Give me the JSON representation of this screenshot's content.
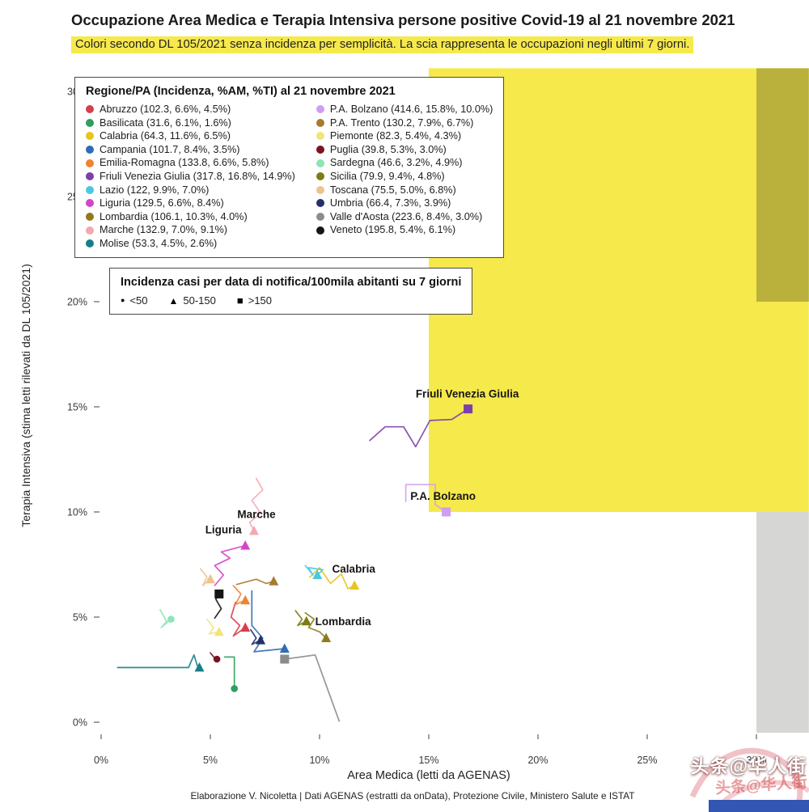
{
  "header": {
    "title": "Occupazione Area Medica e Terapia Intensiva persone positive Covid-19 al 21 novembre 2021",
    "subtitle": "Colori secondo DL 105/2021 senza incidenza per semplicità. La scia rappresenta le occupazioni negli ultimi 7 giorni."
  },
  "footer": {
    "credit": "Elaborazione V. Nicoletta | Dati AGENAS (estratti da onData), Protezione Civile, Ministero Salute e ISTAT"
  },
  "watermark": {
    "text": "头条@华人街",
    "bar_color": "#3356b4"
  },
  "chart_data": {
    "type": "scatter",
    "title": "Occupazione Area Medica e Terapia Intensiva persone positive Covid-19 al 21 novembre 2021",
    "xlabel": "Area Medica (letti da AGENAS)",
    "ylabel": "Terapia Intensiva (stima letti rilevati da DL 105/2021)",
    "xlim": [
      0,
      32.4
    ],
    "ylim": [
      0,
      31.1
    ],
    "xticks": [
      0,
      5,
      10,
      15,
      20,
      25,
      30
    ],
    "yticks": [
      0,
      5,
      10,
      15,
      20,
      25,
      30
    ],
    "grid": false,
    "legend_title": "Regione/PA (Incidenza, %AM, %TI) al 21 novembre 2021",
    "size_legend": {
      "title": "Incidenza casi per data di notifica/100mila abitanti su 7 giorni",
      "items": [
        {
          "symbol": "circle",
          "label": "<50"
        },
        {
          "symbol": "triangle",
          "label": "50-150"
        },
        {
          "symbol": "square",
          "label": ">150"
        }
      ]
    },
    "zones": [
      {
        "name": "yellow",
        "x0": 15,
        "x1": 32.4,
        "y0": 10,
        "y1": 31.1,
        "color": "#f6e94b"
      },
      {
        "name": "orange-overlap",
        "x0": 30,
        "x1": 32.4,
        "y0": 20,
        "y1": 31.1,
        "color": "#b9b13c"
      },
      {
        "name": "gray",
        "x0": 30,
        "x1": 32.4,
        "y0": -0.5,
        "y1": 10,
        "color": "#d6d6d4"
      }
    ],
    "series": [
      {
        "name": "Abruzzo",
        "legend_label": "Abruzzo (102.3, 6.6%, 4.5%)",
        "incidence": 102.3,
        "color": "#d63f4b",
        "shape": "triangle",
        "x": 6.6,
        "y": 4.5,
        "trail": [
          [
            6.15,
            5.7
          ],
          [
            5.95,
            5.0
          ],
          [
            6.35,
            4.6
          ],
          [
            6.05,
            4.1
          ]
        ]
      },
      {
        "name": "Basilicata",
        "legend_label": "Basilicata (31.6, 6.1%, 1.6%)",
        "incidence": 31.6,
        "color": "#2f9e5f",
        "shape": "circle",
        "x": 6.1,
        "y": 1.6,
        "trail": [
          [
            5.65,
            3.1
          ],
          [
            6.1,
            3.1
          ]
        ]
      },
      {
        "name": "Calabria",
        "legend_label": "Calabria (64.3, 11.6%, 6.5%)",
        "incidence": 64.3,
        "color": "#e7c41f",
        "shape": "triangle",
        "x": 11.6,
        "y": 6.5,
        "label": {
          "text": "Calabria",
          "dx": -1,
          "dy": -16
        },
        "trail": [
          [
            9.55,
            6.9
          ],
          [
            10.0,
            7.35
          ],
          [
            10.5,
            6.6
          ],
          [
            11.0,
            7.05
          ],
          [
            11.3,
            6.35
          ]
        ]
      },
      {
        "name": "Campania",
        "legend_label": "Campania (101.7, 8.4%, 3.5%)",
        "incidence": 101.7,
        "color": "#2f6cb4",
        "shape": "triangle",
        "x": 8.4,
        "y": 3.5,
        "trail": [
          [
            6.9,
            6.25
          ],
          [
            6.9,
            4.6
          ],
          [
            7.4,
            4.0
          ],
          [
            7.0,
            3.35
          ]
        ]
      },
      {
        "name": "Emilia-Romagna",
        "legend_label": "Emilia-Romagna (133.8, 6.6%, 5.8%)",
        "incidence": 133.8,
        "color": "#ee8331",
        "shape": "triangle",
        "x": 6.6,
        "y": 5.8,
        "trail": [
          [
            6.05,
            6.5
          ],
          [
            6.4,
            6.1
          ],
          [
            6.15,
            5.6
          ]
        ]
      },
      {
        "name": "Friuli Venezia Giulia",
        "legend_label": "Friuli Venezia Giulia (317.8, 16.8%, 14.9%)",
        "incidence": 317.8,
        "color": "#7d3fa9",
        "shape": "square",
        "x": 16.8,
        "y": 14.9,
        "label": {
          "text": "Friuli Venezia Giulia",
          "dx": -1,
          "dy": -14
        },
        "trail": [
          [
            12.3,
            13.4
          ],
          [
            13.0,
            14.05
          ],
          [
            13.85,
            14.05
          ],
          [
            14.4,
            13.1
          ],
          [
            15.05,
            14.35
          ],
          [
            16.05,
            14.4
          ]
        ]
      },
      {
        "name": "Lazio",
        "legend_label": "Lazio (122, 9.9%, 7.0%)",
        "incidence": 122,
        "color": "#49c9e0",
        "shape": "triangle",
        "x": 9.9,
        "y": 7.0,
        "trail": [
          [
            9.35,
            7.45
          ],
          [
            9.7,
            7.0
          ],
          [
            9.5,
            7.35
          ],
          [
            10.15,
            7.25
          ]
        ]
      },
      {
        "name": "Liguria",
        "legend_label": "Liguria (129.5, 6.6%, 8.4%)",
        "incidence": 129.5,
        "color": "#d544c6",
        "shape": "triangle",
        "x": 6.6,
        "y": 8.4,
        "label": {
          "text": "Liguria",
          "dx": -27,
          "dy": -15
        },
        "trail": [
          [
            5.2,
            6.5
          ],
          [
            5.6,
            7.0
          ],
          [
            5.2,
            7.45
          ],
          [
            5.9,
            7.8
          ],
          [
            5.5,
            8.1
          ]
        ]
      },
      {
        "name": "Lombardia",
        "legend_label": "Lombardia (106.1, 10.3%, 4.0%)",
        "incidence": 106.1,
        "color": "#8f7a1c",
        "shape": "triangle",
        "x": 10.3,
        "y": 4.0,
        "label": {
          "text": "Lombardia",
          "dx": 21,
          "dy": -16
        },
        "trail": [
          [
            9.35,
            5.2
          ],
          [
            9.75,
            4.9
          ],
          [
            9.5,
            4.5
          ],
          [
            10.0,
            4.3
          ]
        ]
      },
      {
        "name": "Marche",
        "legend_label": "Marche (132.9, 7.0%, 9.1%)",
        "incidence": 132.9,
        "color": "#f3a8b2",
        "shape": "triangle",
        "x": 7.0,
        "y": 9.1,
        "label": {
          "text": "Marche",
          "dx": 3,
          "dy": -16
        },
        "trail": [
          [
            7.1,
            11.6
          ],
          [
            7.4,
            11.05
          ],
          [
            6.9,
            10.55
          ],
          [
            7.3,
            9.95
          ],
          [
            6.8,
            9.5
          ]
        ]
      },
      {
        "name": "Molise",
        "legend_label": "Molise (53.3, 4.5%, 2.6%)",
        "incidence": 53.3,
        "color": "#157f89",
        "shape": "triangle",
        "x": 4.5,
        "y": 2.6,
        "trail": [
          [
            0.75,
            2.6
          ],
          [
            4.0,
            2.6
          ],
          [
            4.25,
            3.2
          ],
          [
            4.4,
            2.7
          ]
        ]
      },
      {
        "name": "P.A. Bolzano",
        "legend_label": "P.A. Bolzano (414.6, 15.8%, 10.0%)",
        "incidence": 414.6,
        "color": "#cf9df3",
        "shape": "square",
        "x": 15.8,
        "y": 10.0,
        "label": {
          "text": "P.A. Bolzano",
          "dx": -4,
          "dy": -15
        },
        "trail": [
          [
            13.95,
            10.5
          ],
          [
            13.95,
            11.3
          ],
          [
            15.3,
            11.3
          ],
          [
            15.3,
            10.35
          ]
        ]
      },
      {
        "name": "P.A. Trento",
        "legend_label": "P.A. Trento (130.2, 7.9%, 6.7%)",
        "incidence": 130.2,
        "color": "#a87a2d",
        "shape": "triangle",
        "x": 7.9,
        "y": 6.7,
        "trail": [
          [
            6.2,
            6.55
          ],
          [
            7.1,
            6.8
          ],
          [
            7.55,
            6.6
          ]
        ]
      },
      {
        "name": "Piemonte",
        "legend_label": "Piemonte (82.3, 5.4%, 4.3%)",
        "incidence": 82.3,
        "color": "#f3e37c",
        "shape": "triangle",
        "x": 5.4,
        "y": 4.3,
        "trail": [
          [
            4.85,
            4.9
          ],
          [
            5.15,
            4.5
          ],
          [
            4.95,
            4.2
          ]
        ]
      },
      {
        "name": "Puglia",
        "legend_label": "Puglia (39.8, 5.3%, 3.0%)",
        "incidence": 39.8,
        "color": "#7a1322",
        "shape": "circle",
        "x": 5.3,
        "y": 3.0,
        "trail": [
          [
            5.0,
            3.3
          ],
          [
            5.2,
            3.05
          ]
        ]
      },
      {
        "name": "Sardegna",
        "legend_label": "Sardegna (46.6, 3.2%, 4.9%)",
        "incidence": 46.6,
        "color": "#8ce5b5",
        "shape": "circle",
        "x": 3.2,
        "y": 4.9,
        "trail": [
          [
            2.7,
            5.35
          ],
          [
            3.0,
            4.8
          ],
          [
            2.75,
            4.5
          ]
        ]
      },
      {
        "name": "Sicilia",
        "legend_label": "Sicilia (79.9, 9.4%, 4.8%)",
        "incidence": 79.9,
        "color": "#7c7c15",
        "shape": "triangle",
        "x": 9.4,
        "y": 4.8,
        "trail": [
          [
            8.9,
            5.3
          ],
          [
            9.2,
            4.9
          ],
          [
            9.0,
            4.6
          ]
        ]
      },
      {
        "name": "Toscana",
        "legend_label": "Toscana (75.5, 5.0%, 6.8%)",
        "incidence": 75.5,
        "color": "#efc28f",
        "shape": "triangle",
        "x": 5.0,
        "y": 6.8,
        "trail": [
          [
            4.55,
            7.3
          ],
          [
            4.85,
            6.9
          ],
          [
            4.65,
            6.5
          ]
        ]
      },
      {
        "name": "Umbria",
        "legend_label": "Umbria (66.4, 7.3%, 3.9%)",
        "incidence": 66.4,
        "color": "#23306e",
        "shape": "triangle",
        "x": 7.3,
        "y": 3.9,
        "trail": [
          [
            6.85,
            4.4
          ],
          [
            7.1,
            4.0
          ],
          [
            6.9,
            3.7
          ]
        ]
      },
      {
        "name": "Valle d'Aosta",
        "legend_label": "Valle d'Aosta (223.6, 8.4%, 3.0%)",
        "incidence": 223.6,
        "color": "#8c8c8c",
        "shape": "square",
        "x": 8.4,
        "y": 3.0,
        "trail": [
          [
            10.9,
            0.05
          ],
          [
            9.8,
            3.2
          ]
        ]
      },
      {
        "name": "Veneto",
        "legend_label": "Veneto (195.8, 5.4%, 6.1%)",
        "incidence": 195.8,
        "color": "#151515",
        "shape": "square",
        "x": 5.4,
        "y": 6.1,
        "trail": [
          [
            5.2,
            4.95
          ],
          [
            5.5,
            5.4
          ],
          [
            5.25,
            5.85
          ]
        ]
      }
    ]
  }
}
